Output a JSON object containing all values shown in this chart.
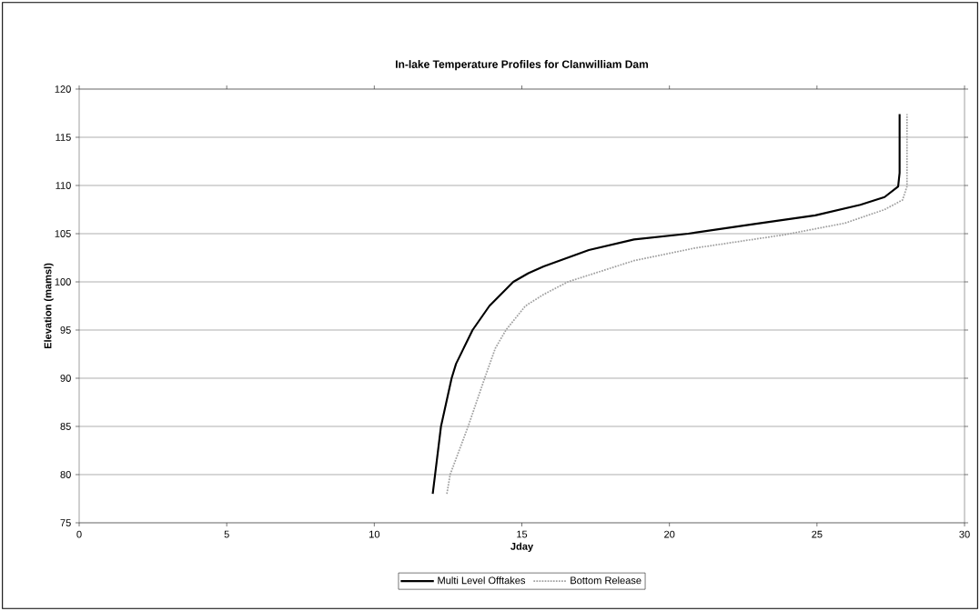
{
  "chart_data": {
    "type": "line",
    "title": "In-lake Temperature Profiles for Clanwilliam Dam",
    "xlabel": "Jday",
    "ylabel": "Elevation (mamsl)",
    "xlim": [
      0,
      30
    ],
    "ylim": [
      75,
      120
    ],
    "xticks": [
      0,
      5,
      10,
      15,
      20,
      25,
      30
    ],
    "yticks": [
      75,
      80,
      85,
      90,
      95,
      100,
      105,
      110,
      115,
      120
    ],
    "grid": "y",
    "legend": "bottom",
    "marker": "none",
    "series": [
      {
        "name": "Multi Level Offtakes",
        "color": "#000000",
        "line_style": "solid",
        "x": [
          11.98,
          12.26,
          12.62,
          12.77,
          13.33,
          13.9,
          14.71,
          15.22,
          15.74,
          17.27,
          18.8,
          20.64,
          22.88,
          24.94,
          26.47,
          27.29,
          27.75,
          27.8,
          27.8
        ],
        "values": [
          78,
          85,
          90,
          91.5,
          95,
          97.5,
          100,
          100.9,
          101.6,
          103.3,
          104.4,
          105.0,
          106.0,
          106.9,
          108.0,
          108.8,
          109.9,
          111.3,
          117.4
        ]
      },
      {
        "name": "Bottom Release",
        "color": "#a0a0a0",
        "line_style": "dotted",
        "x": [
          12.46,
          12.57,
          13.18,
          13.74,
          14.1,
          14.46,
          15.12,
          15.74,
          16.56,
          16.76,
          18.8,
          20.85,
          23.92,
          25.96,
          27.29,
          27.9,
          28.05,
          28.05
        ],
        "values": [
          78,
          80,
          85,
          90,
          93.1,
          95,
          97.5,
          98.7,
          100,
          100.2,
          102.2,
          103.5,
          104.9,
          106.1,
          107.5,
          108.5,
          109.9,
          117.4
        ]
      }
    ]
  }
}
